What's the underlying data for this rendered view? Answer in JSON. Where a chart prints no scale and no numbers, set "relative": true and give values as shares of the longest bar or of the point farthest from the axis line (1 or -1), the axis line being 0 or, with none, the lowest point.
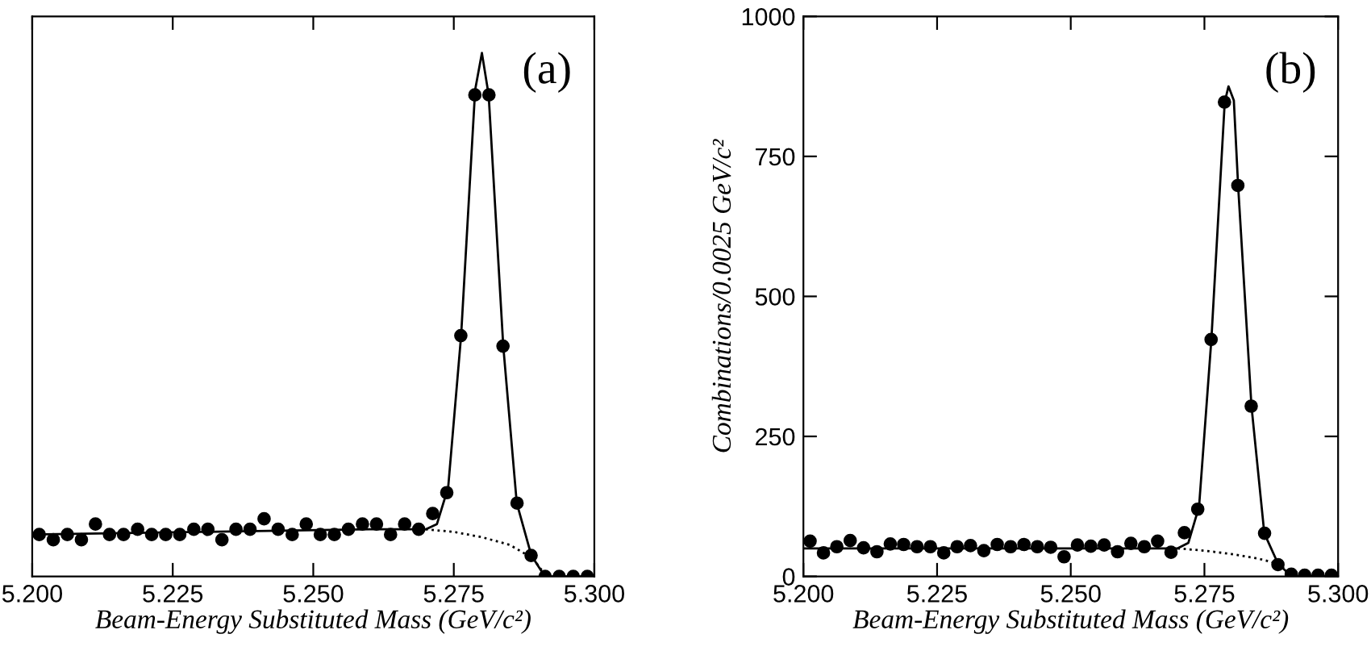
{
  "chart_data": [
    {
      "type": "scatter",
      "relative": true,
      "xlabel": "Beam-Energy Substituted Mass (GeV/c²)",
      "annotations": [
        "(a)"
      ],
      "xlim": [
        5.2,
        5.3
      ],
      "xticks": [
        {
          "value": 5.2,
          "label": "5.200"
        },
        {
          "value": 5.225,
          "label": "5.225"
        },
        {
          "value": 5.25,
          "label": "5.250"
        },
        {
          "value": 5.275,
          "label": "5.275"
        },
        {
          "value": 5.3,
          "label": "5.300"
        }
      ],
      "grid": false,
      "series": [
        {
          "marker": "circle",
          "color": "#000000",
          "x": [
            5.20125,
            5.20375,
            5.20625,
            5.20875,
            5.21125,
            5.21375,
            5.21625,
            5.21875,
            5.22125,
            5.22375,
            5.22625,
            5.22875,
            5.23125,
            5.23375,
            5.23625,
            5.23875,
            5.24125,
            5.24375,
            5.24625,
            5.24875,
            5.25125,
            5.25375,
            5.25625,
            5.25875,
            5.26125,
            5.26375,
            5.26625,
            5.26875,
            5.27125,
            5.27375,
            5.27625,
            5.27875,
            5.28125,
            5.28375,
            5.28625,
            5.28875,
            5.29125,
            5.29375,
            5.29625,
            5.29875
          ],
          "values": [
            0.08,
            0.07,
            0.08,
            0.07,
            0.1,
            0.08,
            0.08,
            0.09,
            0.08,
            0.08,
            0.08,
            0.09,
            0.09,
            0.07,
            0.09,
            0.09,
            0.11,
            0.09,
            0.08,
            0.1,
            0.08,
            0.08,
            0.09,
            0.1,
            0.1,
            0.08,
            0.1,
            0.09,
            0.12,
            0.16,
            0.46,
            0.92,
            0.92,
            0.44,
            0.14,
            0.04,
            0.0,
            0.0,
            0.0,
            0.0
          ]
        },
        {
          "type": "line",
          "color": "#000000",
          "line_style": "solid",
          "x": [
            5.2,
            5.23,
            5.26,
            5.27,
            5.272,
            5.274,
            5.2763,
            5.2788,
            5.28,
            5.2812,
            5.2838,
            5.2862,
            5.2888,
            5.291,
            5.292,
            5.3
          ],
          "values": [
            0.08,
            0.085,
            0.09,
            0.09,
            0.1,
            0.17,
            0.46,
            0.93,
            1.0,
            0.92,
            0.44,
            0.14,
            0.04,
            0.003,
            0,
            0
          ]
        },
        {
          "type": "line",
          "color": "#000000",
          "line_style": "dotted",
          "x": [
            5.27,
            5.275,
            5.28,
            5.285,
            5.289,
            5.2915
          ],
          "values": [
            0.09,
            0.085,
            0.075,
            0.06,
            0.035,
            0
          ]
        }
      ]
    },
    {
      "type": "scatter",
      "xlabel": "Beam-Energy Substituted Mass (GeV/c²)",
      "ylabel": "Combinations/0.0025 GeV/c²",
      "annotations": [
        "(b)"
      ],
      "xlim": [
        5.2,
        5.3
      ],
      "xticks": [
        {
          "value": 5.2,
          "label": "5.200"
        },
        {
          "value": 5.225,
          "label": "5.225"
        },
        {
          "value": 5.25,
          "label": "5.250"
        },
        {
          "value": 5.275,
          "label": "5.275"
        },
        {
          "value": 5.3,
          "label": "5.300"
        }
      ],
      "ylim": [
        0,
        1000
      ],
      "yticks": [
        0,
        250,
        500,
        750,
        1000
      ],
      "grid": false,
      "series": [
        {
          "marker": "circle",
          "color": "#000000",
          "x": [
            5.20125,
            5.20375,
            5.20625,
            5.20875,
            5.21125,
            5.21375,
            5.21625,
            5.21875,
            5.22125,
            5.22375,
            5.22625,
            5.22875,
            5.23125,
            5.23375,
            5.23625,
            5.23875,
            5.24125,
            5.24375,
            5.24625,
            5.24875,
            5.25125,
            5.25375,
            5.25625,
            5.25875,
            5.26125,
            5.26375,
            5.26625,
            5.26875,
            5.27125,
            5.27375,
            5.27625,
            5.27875,
            5.28125,
            5.28375,
            5.28625,
            5.28875,
            5.29125,
            5.29375,
            5.29625,
            5.29875
          ],
          "values": [
            63,
            42,
            53,
            64,
            51,
            44,
            58,
            57,
            53,
            53,
            42,
            53,
            55,
            46,
            57,
            53,
            57,
            53,
            52,
            35,
            56,
            54,
            56,
            44,
            59,
            53,
            63,
            43,
            78,
            120,
            423,
            847,
            698,
            304,
            77,
            21,
            4,
            2,
            2,
            2
          ]
        },
        {
          "type": "line",
          "color": "#000000",
          "line_style": "solid",
          "x": [
            5.2,
            5.23,
            5.26,
            5.27,
            5.272,
            5.274,
            5.2763,
            5.2788,
            5.2795,
            5.2805,
            5.2813,
            5.2838,
            5.2862,
            5.2888,
            5.291,
            5.292,
            5.3
          ],
          "values": [
            50,
            50,
            50,
            50,
            60,
            125,
            423,
            847,
            875,
            850,
            698,
            304,
            77,
            22,
            3,
            0,
            0
          ]
        },
        {
          "type": "line",
          "color": "#000000",
          "line_style": "dotted",
          "x": [
            5.27,
            5.275,
            5.28,
            5.285,
            5.289,
            5.2915
          ],
          "values": [
            50,
            46,
            40,
            32,
            22,
            0
          ]
        }
      ]
    }
  ]
}
